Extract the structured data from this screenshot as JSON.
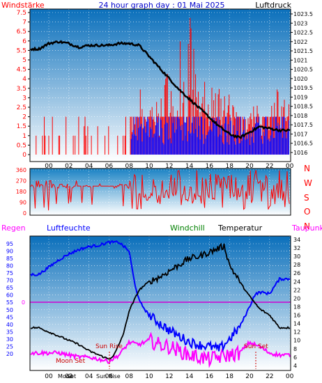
{
  "header": {
    "left_label": "Windstärke",
    "title": "24 hour graph day : 01 Mai 2025",
    "right_label": "Luftdruck"
  },
  "bottom_headers": {
    "regen": "Regen",
    "luftfeuchte": "Luftfeuchte",
    "windchill": "Windchill",
    "temperatur": "Temperatur",
    "taupunkt": "Taupunkt"
  },
  "colors": {
    "wind": "#ff0000",
    "wind_gust": "#0000ff",
    "pressure": "#000000",
    "direction": "#ff0000",
    "humidity": "#0000ff",
    "temperature": "#000000",
    "windchill": "#008000",
    "dewpoint": "#ff00ff",
    "rain": "#ff00ff",
    "label_red": "#ff0000",
    "label_blue": "#0000ff"
  },
  "chart_data": [
    {
      "type": "bar+line",
      "name": "wind-pressure",
      "x_ticks": [
        "00",
        "02",
        "04",
        "06",
        "08",
        "10",
        "12",
        "14",
        "16",
        "18",
        "20",
        "22",
        "00"
      ],
      "wind_ticks": [
        "0",
        "0.5",
        "1",
        "1.5",
        "2",
        "2.5",
        "3",
        "3.5",
        "4",
        "4.5",
        "5",
        "5.5",
        "6",
        "6.5",
        "7",
        "7.5"
      ],
      "pressure_ticks": [
        "1016",
        "1016.5",
        "1017",
        "1017.5",
        "1018",
        "1018.5",
        "1019",
        "1019.5",
        "1020",
        "1020.5",
        "1021",
        "1021.5",
        "1022",
        "1022.5",
        "1023",
        "1023.5"
      ],
      "wind_ylim": [
        0,
        7.5
      ],
      "pressure_ylim": [
        1015.75,
        1023.5
      ],
      "pressure": {
        "x": [
          -1,
          0,
          1,
          2,
          3,
          4,
          5,
          6,
          7,
          8,
          9,
          10,
          11,
          12,
          13,
          14,
          15,
          16,
          17,
          18,
          19,
          20,
          21,
          22,
          23
        ],
        "y": [
          1021.6,
          1021.9,
          1022.0,
          1021.9,
          1021.7,
          1021.8,
          1021.8,
          1021.8,
          1021.9,
          1021.9,
          1021.8,
          1021.2,
          1020.6,
          1020.0,
          1019.4,
          1018.9,
          1018.4,
          1017.9,
          1017.4,
          1017.0,
          1016.8,
          1017.1,
          1017.4,
          1017.3,
          1017.2
        ]
      },
      "wind_peak_x": [
        8.5,
        9,
        10,
        10.5,
        11,
        11.5,
        12,
        12.5,
        13,
        13.5,
        14,
        14.5,
        15,
        15.5,
        16,
        16.5,
        17,
        17.5,
        18,
        19,
        20,
        21,
        22,
        22.5
      ],
      "wind_peak_y": [
        2.0,
        3.5,
        3.5,
        2.5,
        3.5,
        4.0,
        5.0,
        4.5,
        6.0,
        6.5,
        7.5,
        6.0,
        4.5,
        5.5,
        3.5,
        4.5,
        3.5,
        3.5,
        3.5,
        2.0,
        2.0,
        3.5,
        2.0,
        3.5
      ]
    },
    {
      "type": "line",
      "name": "wind-direction",
      "y_ticks": [
        "360",
        "270",
        "180",
        "90",
        "0"
      ],
      "direction_labels": [
        "N",
        "W",
        "S",
        "O",
        "N"
      ],
      "ylim": [
        0,
        360
      ]
    },
    {
      "type": "line",
      "name": "temp-humidity",
      "x_ticks": [
        "00",
        "02",
        "04",
        "06",
        "08",
        "10",
        "12",
        "14",
        "16",
        "18",
        "20",
        "22",
        "00"
      ],
      "humidity_ticks": [
        "95",
        "90",
        "85",
        "80",
        "75",
        "70",
        "65",
        "60",
        "55",
        "50",
        "45",
        "40",
        "35",
        "30",
        "25",
        "20"
      ],
      "rain_marker": "0",
      "temp_ticks": [
        "34",
        "32",
        "30",
        "28",
        "26",
        "24",
        "22",
        "20",
        "18",
        "16",
        "14",
        "12",
        "10",
        "8",
        "6",
        "4"
      ],
      "humidity_ylim": [
        17.5,
        98
      ],
      "temp_ylim": [
        2,
        35
      ],
      "humidity": {
        "x": [
          -1,
          0,
          1,
          2,
          3,
          4,
          5,
          5.5,
          6,
          7,
          8,
          8.5,
          9,
          10,
          11,
          12,
          13,
          14,
          15,
          16,
          17,
          18,
          19,
          20,
          20.5,
          21,
          22,
          23
        ],
        "y": [
          74,
          79,
          84,
          88,
          91,
          93,
          94,
          95,
          96,
          96,
          90,
          70,
          56,
          46,
          41,
          36,
          32,
          28,
          26,
          25,
          23,
          30,
          38,
          52,
          60,
          62,
          61,
          71
        ]
      },
      "temperature": {
        "x": [
          -1,
          0,
          1,
          2,
          3,
          4,
          5,
          6,
          6.5,
          7,
          7.5,
          8,
          9,
          10,
          11,
          12,
          13,
          14,
          15,
          16,
          17,
          17.5,
          18,
          19,
          20,
          21,
          22,
          23
        ],
        "y": [
          13.0,
          12.0,
          11.0,
          10.0,
          9.0,
          7.5,
          6.5,
          5.5,
          6.5,
          9.0,
          12.0,
          17.0,
          22.0,
          24.0,
          25.0,
          26.5,
          28.0,
          29.5,
          30.0,
          31.0,
          32.0,
          32.5,
          28.0,
          24.0,
          20.5,
          17.5,
          16.0,
          13.0
        ]
      },
      "dewpoint": {
        "x": [
          -1,
          0,
          1,
          2,
          3,
          4,
          5,
          6,
          7,
          8,
          9,
          10,
          11,
          12,
          13,
          14,
          15,
          16,
          17,
          18,
          19,
          20,
          21,
          22,
          23
        ],
        "y": [
          7.0,
          7.0,
          7.0,
          6.5,
          6.0,
          6.0,
          5.5,
          5.0,
          6.5,
          9.5,
          9.0,
          10.0,
          9.0,
          8.5,
          7.5,
          6.5,
          6.0,
          5.5,
          6.0,
          6.5,
          7.0,
          9.5,
          8.5,
          7.0,
          6.5
        ]
      },
      "sun_rise_label": "Sun Rise",
      "sun_set_label": "Sun Set",
      "moon_set_label": "Moon Set",
      "overlap_labels": [
        "Moon",
        "Set",
        "Sun Rise"
      ]
    }
  ]
}
